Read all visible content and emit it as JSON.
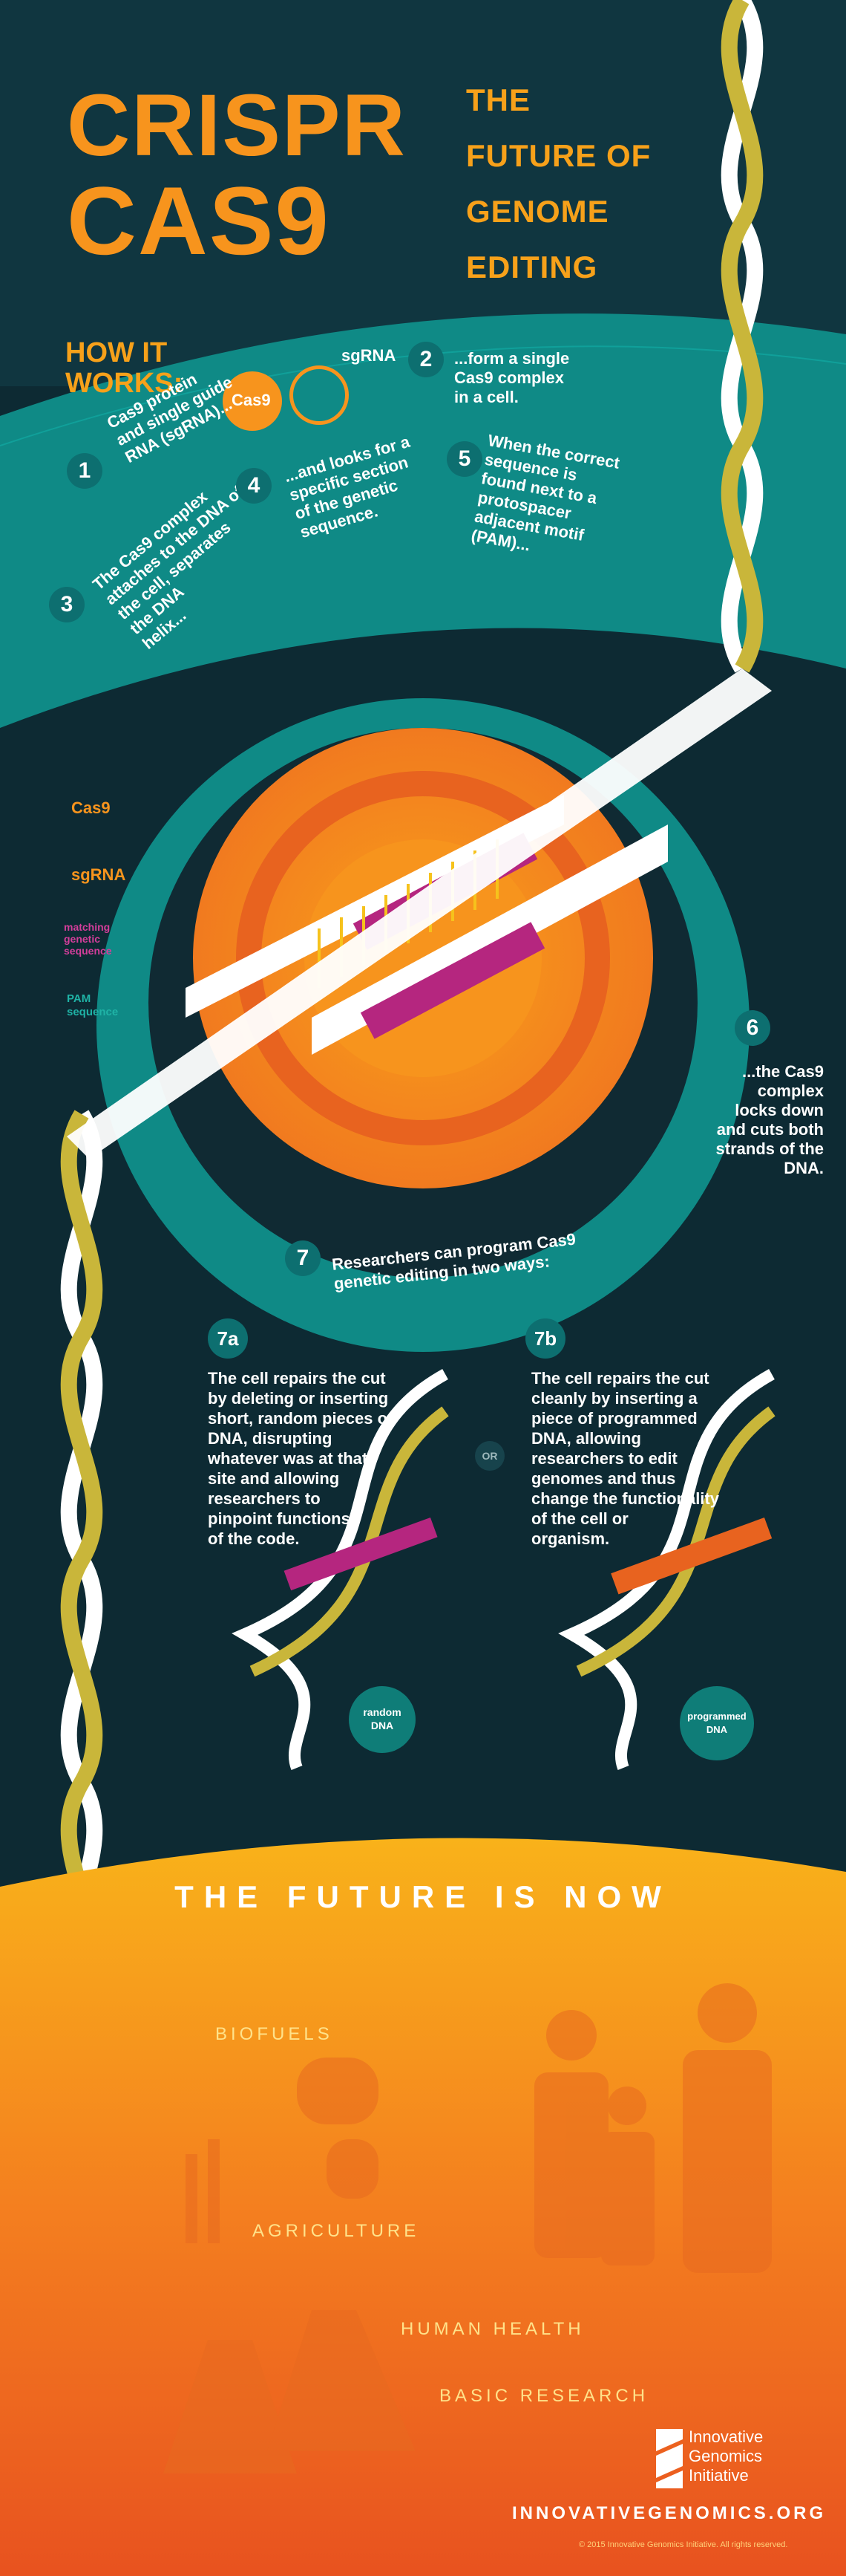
{
  "header": {
    "title_line1": "CRISPR",
    "title_line2": "CAS9",
    "subtitle_lines": [
      "THE",
      "FUTURE OF",
      "GENOME",
      "EDITING"
    ]
  },
  "how_it_works": {
    "heading_line1": "HOW IT",
    "heading_line2": "WORKS:",
    "cas9_badge": "Cas9",
    "sgrna_label": "sgRNA",
    "steps": [
      {
        "number": "1",
        "text_lines": [
          "Cas9 protein",
          "and single guide",
          "RNA (sgRNA)..."
        ]
      },
      {
        "number": "2",
        "text_lines": [
          "...form a single",
          "Cas9 complex",
          "in a cell."
        ]
      },
      {
        "number": "3",
        "text_lines": [
          "The Cas9 complex",
          "attaches to the DNA of",
          "the cell, separates",
          "the DNA",
          "helix..."
        ]
      },
      {
        "number": "4",
        "text_lines": [
          "...and looks for a",
          "specific section",
          "of the genetic",
          "sequence."
        ]
      },
      {
        "number": "5",
        "text_lines": [
          "When the correct",
          "sequence is",
          "found next to a",
          "protospacer",
          "adjacent motif",
          "(PAM)..."
        ]
      }
    ]
  },
  "legend": {
    "cas9": "Cas9",
    "sgrna": "sgRNA",
    "matching_line1": "matching",
    "matching_line2": "genetic",
    "matching_line3": "sequence",
    "pam_line1": "PAM",
    "pam_line2": "sequence"
  },
  "step6": {
    "number": "6",
    "text_lines": [
      "...the Cas9",
      "complex",
      "locks down",
      "and cuts both",
      "strands of the DNA."
    ]
  },
  "step7": {
    "number": "7",
    "text_lines": [
      "Researchers can program Cas9",
      "genetic editing in two ways:"
    ]
  },
  "option_7a": {
    "number": "7a",
    "text_lines": [
      "The cell repairs the cut",
      "by deleting or inserting",
      "short, random pieces of",
      "DNA, disrupting",
      "whatever was at that",
      "site and allowing",
      "researchers to",
      "pinpoint functions",
      "of the code."
    ],
    "badge_line1": "random",
    "badge_line2": "DNA"
  },
  "or_label": "OR",
  "option_7b": {
    "number": "7b",
    "text_lines": [
      "The cell repairs the cut",
      "cleanly by inserting a",
      "piece of programmed",
      "DNA, allowing",
      "researchers to edit",
      "genomes and thus",
      "change the functionality",
      "of the cell or",
      "organism."
    ],
    "badge_line1": "programmed",
    "badge_line2": "DNA"
  },
  "future": {
    "banner": "THE FUTURE IS NOW",
    "sectors": [
      "BIOFUELS",
      "AGRICULTURE",
      "HUMAN HEALTH",
      "BASIC RESEARCH"
    ]
  },
  "footer": {
    "org_line1": "Innovative",
    "org_line2": "Genomics",
    "org_line3": "Initiative",
    "url": "INNOVATIVEGENOMICS.ORG",
    "copyright": "© 2015 Innovative Genomics Initiative. All rights reserved."
  },
  "colors": {
    "background_dark": "#0d2a33",
    "teal": "#0f8a86",
    "orange": "#f7941d",
    "magenta": "#b5267f",
    "yellow": "#f6c21c"
  },
  "icons": [
    "dna-helix-icon",
    "cas9-protein-icon",
    "sgrna-icon",
    "arrow-icon",
    "logo-icon"
  ]
}
